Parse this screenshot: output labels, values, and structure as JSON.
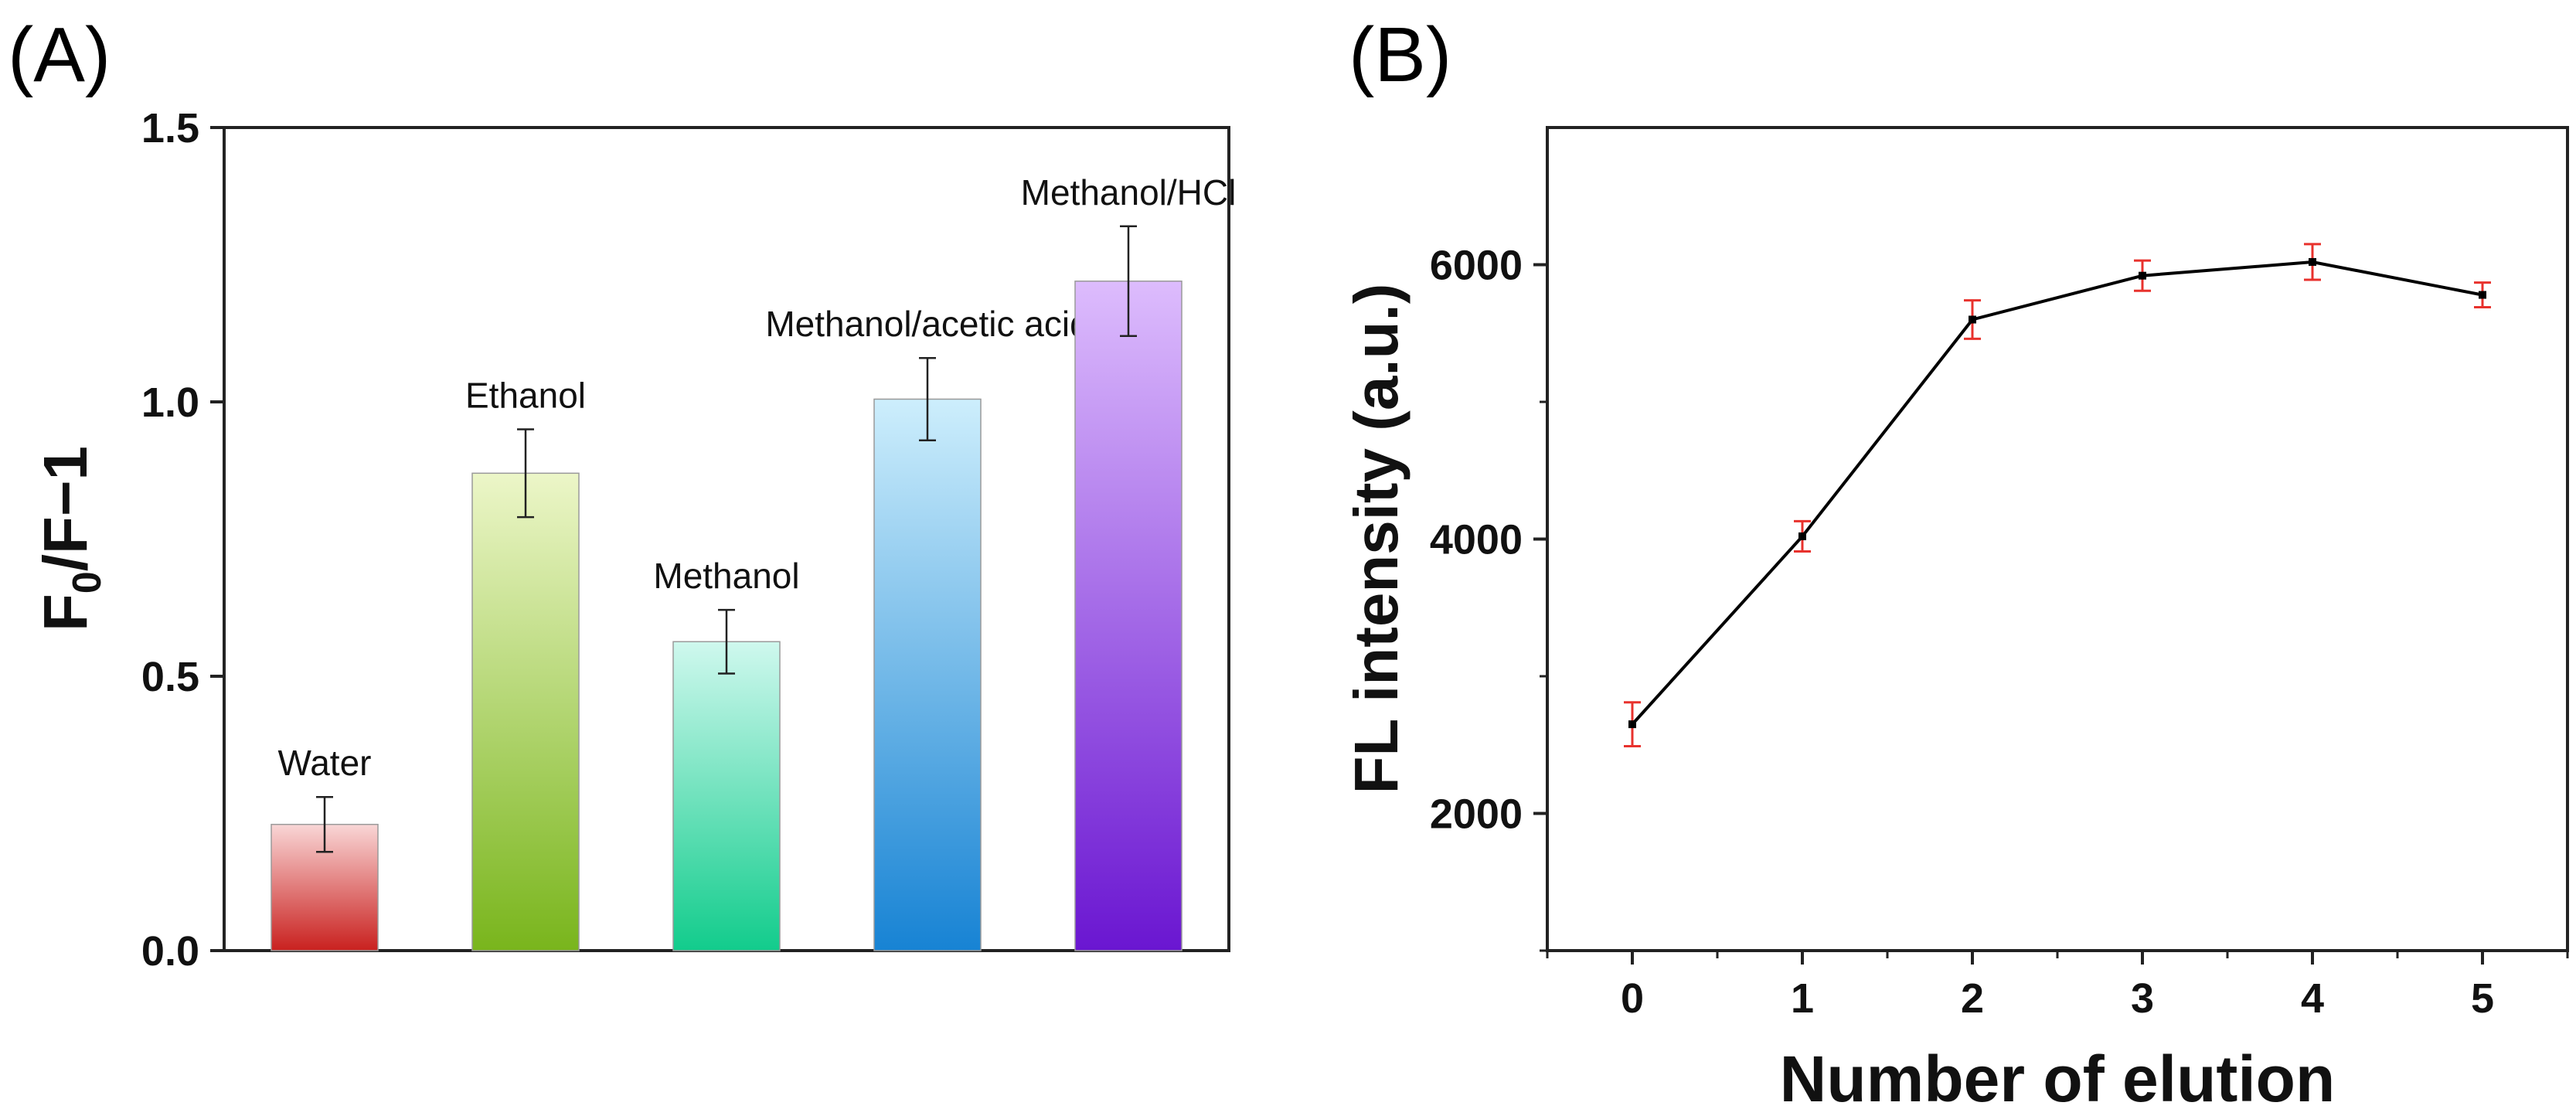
{
  "chart_data": [
    {
      "panel": "(A)",
      "type": "bar",
      "categories": [
        "Water",
        "Ethanol",
        "Methanol",
        "Methanol/acetic acid",
        "Methanol/HCl"
      ],
      "values": [
        0.23,
        0.87,
        0.563,
        1.005,
        1.22
      ],
      "errors": [
        0.05,
        0.08,
        0.058,
        0.075,
        0.1
      ],
      "ylabel_main": "F",
      "ylabel_sub": "0",
      "ylabel_rest": "/F−1",
      "xlabel": "",
      "ylim": [
        0,
        1.5
      ],
      "yticks": [
        0.0,
        0.5,
        1.0,
        1.5
      ],
      "ytick_labels": [
        "0.0",
        "0.5",
        "1.0",
        "1.5"
      ],
      "bar_colors": [
        {
          "top": "#f9d6d6",
          "bottom": "#c9211f"
        },
        {
          "top": "#ecf6c8",
          "bottom": "#79b51c"
        },
        {
          "top": "#cff8ee",
          "bottom": "#12cc8c"
        },
        {
          "top": "#cdeefc",
          "bottom": "#1783d4"
        },
        {
          "top": "#ddbcfd",
          "bottom": "#6a16d1"
        }
      ],
      "error_color": "#222222"
    },
    {
      "panel": "(B)",
      "type": "line",
      "x": [
        0,
        1,
        2,
        3,
        4,
        5
      ],
      "y": [
        2650,
        4020,
        5600,
        5920,
        6020,
        5780
      ],
      "errors": [
        160,
        110,
        140,
        110,
        130,
        90
      ],
      "xlabel": "Number of elution",
      "ylabel": "FL intensity (a.u.)",
      "xlim": [
        -0.5,
        5.5
      ],
      "ylim": [
        1000,
        7000
      ],
      "xticks": [
        0,
        1,
        2,
        3,
        4,
        5
      ],
      "xtick_labels": [
        "0",
        "1",
        "2",
        "3",
        "4",
        "5"
      ],
      "yticks": [
        2000,
        4000,
        6000
      ],
      "ytick_labels": [
        "2000",
        "4000",
        "6000"
      ],
      "line_color": "#000000",
      "error_color": "#e8322d"
    }
  ]
}
